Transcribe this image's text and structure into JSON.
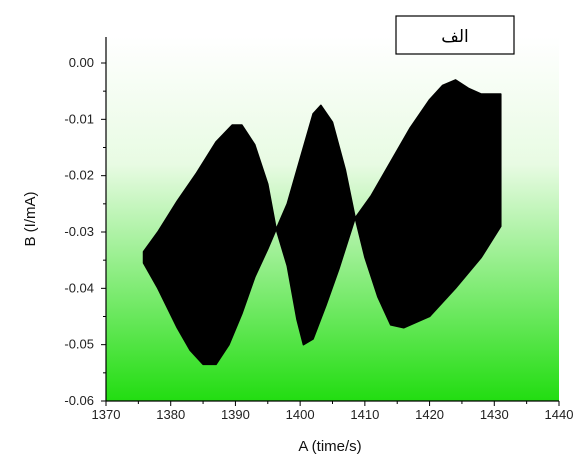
{
  "chart_data": {
    "type": "area",
    "title": "",
    "xlabel": "A (time/s)",
    "ylabel": "B (I/mA)",
    "xlim": [
      1370,
      1440
    ],
    "ylim": [
      -0.06,
      0.005
    ],
    "x_ticks": [
      1370,
      1380,
      1390,
      1400,
      1410,
      1420,
      1430,
      1440
    ],
    "x_tick_labels": [
      "1370",
      "1380",
      "1390",
      "1400",
      "1410",
      "1420",
      "1430",
      "1440"
    ],
    "y_ticks": [
      0.0,
      -0.01,
      -0.02,
      -0.03,
      -0.04,
      -0.05,
      -0.06
    ],
    "y_tick_labels": [
      "0.00",
      "-0.01",
      "-0.02",
      "-0.03",
      "-0.04",
      "-0.05",
      "-0.06"
    ],
    "grid": false,
    "background_gradient": [
      "#ffffff",
      "#22dd11"
    ],
    "fill_color": "#000000",
    "legend_box_text": "الف",
    "legend_position": "top-right",
    "series": [
      {
        "upper_envelope": {
          "x": [
            1375.8,
            1378,
            1381,
            1384,
            1387,
            1389.5,
            1391,
            1393,
            1395,
            1396.3,
            1398,
            1400,
            1402,
            1403.2,
            1405,
            1407,
            1408.5,
            1411,
            1414,
            1417,
            1420,
            1422,
            1424,
            1426,
            1428,
            1431
          ],
          "y": [
            -0.0335,
            -0.03,
            -0.0245,
            -0.0195,
            -0.014,
            -0.011,
            -0.011,
            -0.0145,
            -0.0215,
            -0.0295,
            -0.025,
            -0.017,
            -0.009,
            -0.0075,
            -0.0105,
            -0.019,
            -0.0275,
            -0.0235,
            -0.0175,
            -0.0115,
            -0.0065,
            -0.004,
            -0.003,
            -0.0045,
            -0.0055,
            -0.0055
          ]
        },
        "lower_envelope": {
          "x": [
            1375.8,
            1378,
            1381,
            1383,
            1385,
            1387,
            1389,
            1391,
            1393,
            1395,
            1396.3,
            1398,
            1399.5,
            1400.5,
            1402,
            1404,
            1406,
            1408.5,
            1410,
            1412,
            1414,
            1416,
            1420,
            1424,
            1428,
            1431
          ],
          "y": [
            -0.0355,
            -0.04,
            -0.047,
            -0.051,
            -0.0535,
            -0.0535,
            -0.05,
            -0.0445,
            -0.038,
            -0.033,
            -0.0295,
            -0.036,
            -0.0455,
            -0.05,
            -0.049,
            -0.043,
            -0.0365,
            -0.0275,
            -0.0345,
            -0.0415,
            -0.0465,
            -0.047,
            -0.045,
            -0.04,
            -0.0345,
            -0.029
          ]
        }
      }
    ]
  }
}
